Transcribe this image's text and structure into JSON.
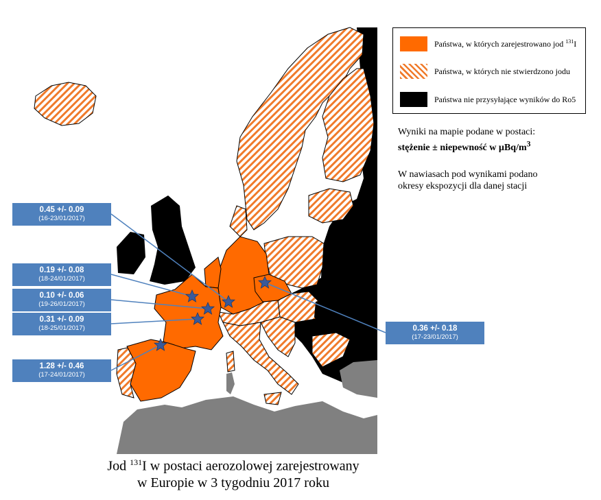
{
  "legend": {
    "items": [
      {
        "label_pre": "Państwa, w których zarejestrowano jod ",
        "label_sup": "131",
        "label_post": "I",
        "color": "#ff6a00",
        "style": "solid"
      },
      {
        "label": "Państwa, w których nie stwierdzono jodu",
        "color": "#f07a2a",
        "style": "hatched"
      },
      {
        "label": "Państwa nie przysyłające wyników do Ro5",
        "color": "#000000",
        "style": "solid"
      }
    ]
  },
  "info": {
    "line1": "Wyniki na mapie podane w postaci:",
    "line2": "stężenie ± niepewność w µBq/m",
    "line2_sup": "3",
    "line3": "W nawiasach pod wynikami podano",
    "line4": "okresy ekspozycji dla danej stacji"
  },
  "stations": [
    {
      "value": "0.45 +/- 0.09",
      "period": "(16-23/01/2017)"
    },
    {
      "value": "0.19 +/- 0.08",
      "period": "(18-24/01/2017)"
    },
    {
      "value": "0.10 +/- 0.06",
      "period": "(19-26/01/2017)"
    },
    {
      "value": "0.31 +/- 0.09",
      "period": "(18-25/01/2017)"
    },
    {
      "value": "1.28 +/- 0.46",
      "period": "(17-24/01/2017)"
    },
    {
      "value": "0.36 +/- 0.18",
      "period": "(17-23/01/2017)"
    }
  ],
  "caption": {
    "pre": "Jod ",
    "sup": "131",
    "line1_post": "I w postaci aerozolowej zarejestrowany",
    "line2": "w Europie w 3 tygodniu 2017 roku"
  },
  "colors": {
    "detected": "#ff6a00",
    "not_detected_hatch": "#f07a2a",
    "no_data": "#000000",
    "other_land": "#808080",
    "label_box": "#4f81bd",
    "station_star": "#3a5a9a"
  },
  "icons": {
    "station": "star-icon"
  }
}
